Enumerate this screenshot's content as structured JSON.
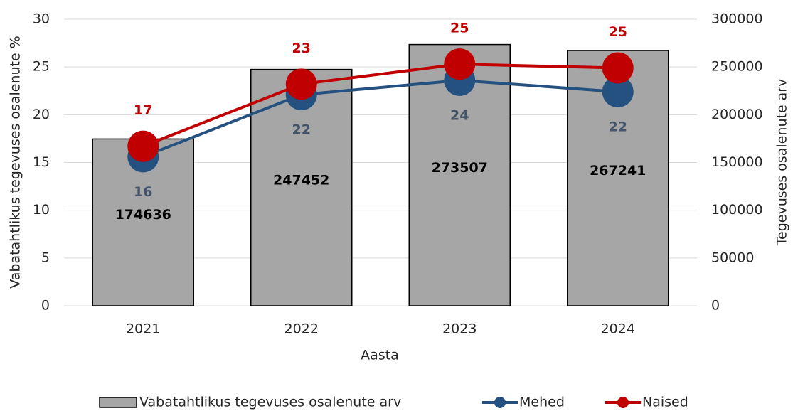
{
  "chart_data": {
    "type": "bar-line",
    "x_label": "Aasta",
    "y_label": "Vabatahtlikus tegevuses osalenute %",
    "y2_label": "Tegevuses osalenute arv",
    "categories": [
      "2021",
      "2022",
      "2023",
      "2024"
    ],
    "ylim": [
      0,
      30
    ],
    "yticks": [
      0,
      5,
      10,
      15,
      20,
      25,
      30
    ],
    "y2lim": [
      0,
      300000
    ],
    "y2ticks": [
      0,
      50000,
      100000,
      150000,
      200000,
      250000,
      300000
    ],
    "grid": true,
    "legend": "bottom",
    "series": [
      {
        "name": "Vabatahtlikus tegevuses osalenute arv",
        "type": "bar",
        "axis": "y2",
        "color": "#a6a6a6",
        "label_color": "#000000",
        "values": [
          174636,
          247452,
          273507,
          267241
        ]
      },
      {
        "name": "Mehed",
        "type": "line",
        "axis": "y",
        "color": "#255180",
        "label_color": "#44546a",
        "values": [
          15.6,
          22.1,
          23.6,
          22.4
        ],
        "value_labels": [
          "16",
          "22",
          "24",
          "22"
        ]
      },
      {
        "name": "Naised",
        "type": "line",
        "axis": "y",
        "color": "#c00000",
        "label_color": "#c00000",
        "values": [
          16.7,
          23.2,
          25.3,
          24.9
        ],
        "value_labels": [
          "17",
          "23",
          "25",
          "25"
        ]
      }
    ]
  }
}
